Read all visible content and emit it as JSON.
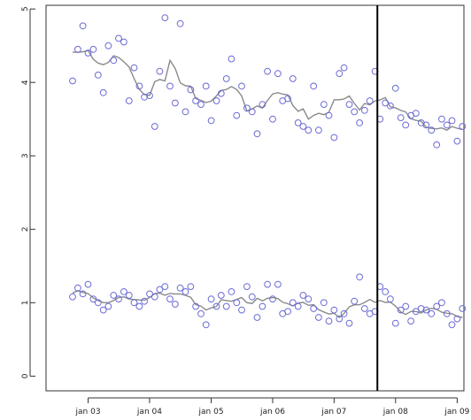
{
  "chart_data": {
    "type": "scatter",
    "title": "",
    "xlabel": "",
    "ylabel": "",
    "x_ticks": [
      "jan 03",
      "jan 04",
      "jan 05",
      "jan 06",
      "jan 07",
      "jan 08",
      "jan 09"
    ],
    "y_ticks": [
      "0",
      "1",
      "2",
      "3",
      "4",
      "5"
    ],
    "ylim": [
      -0.2,
      5.05
    ],
    "grid": false,
    "legend": "none",
    "vline_date": "2007-09-15",
    "colors": {
      "points": "#6b6bd6",
      "line": "#8a8a8a",
      "vline": "#000000",
      "axis": "#333333"
    },
    "series": [
      {
        "x": [
          "2002-10-01",
          "2002-11-01",
          "2002-12-01",
          "2003-01-01",
          "2003-02-01",
          "2003-03-01",
          "2003-04-01",
          "2003-05-01",
          "2003-06-01",
          "2003-07-01",
          "2003-08-01",
          "2003-09-01",
          "2003-10-01",
          "2003-11-01",
          "2003-12-01",
          "2004-01-01",
          "2004-02-01",
          "2004-03-01",
          "2004-04-01",
          "2004-05-01",
          "2004-06-01",
          "2004-07-01",
          "2004-08-01",
          "2004-09-01",
          "2004-10-01",
          "2004-11-01",
          "2004-12-01",
          "2005-01-01",
          "2005-02-01",
          "2005-03-01",
          "2005-04-01",
          "2005-05-01",
          "2005-06-01",
          "2005-07-01",
          "2005-08-01",
          "2005-09-01",
          "2005-10-01",
          "2005-11-01",
          "2005-12-01",
          "2006-01-01",
          "2006-02-01",
          "2006-03-01",
          "2006-04-01",
          "2006-05-01",
          "2006-06-01",
          "2006-07-01",
          "2006-08-01",
          "2006-09-01",
          "2006-10-01",
          "2006-11-01",
          "2006-12-01",
          "2007-01-01",
          "2007-02-01",
          "2007-03-01",
          "2007-04-01",
          "2007-05-01",
          "2007-06-01",
          "2007-07-01",
          "2007-08-01",
          "2007-09-01",
          "2007-10-01",
          "2007-11-01",
          "2007-12-01",
          "2008-01-01",
          "2008-02-01",
          "2008-03-01",
          "2008-04-01",
          "2008-05-01",
          "2008-06-01",
          "2008-07-01",
          "2008-08-01",
          "2008-09-01",
          "2008-10-01",
          "2008-11-01",
          "2008-12-01",
          "2009-01-01",
          "2009-02-01"
        ],
        "y": [
          4.02,
          4.45,
          4.77,
          4.4,
          4.45,
          4.1,
          3.86,
          4.5,
          4.3,
          4.6,
          4.55,
          3.75,
          4.2,
          3.95,
          3.8,
          3.82,
          3.4,
          4.15,
          4.88,
          3.95,
          3.72,
          4.8,
          3.6,
          3.9,
          3.75,
          3.7,
          3.95,
          3.48,
          3.75,
          3.85,
          4.05,
          4.32,
          3.55,
          3.95,
          3.65,
          3.6,
          3.3,
          3.7,
          4.15,
          3.5,
          4.12,
          3.75,
          3.78,
          4.05,
          3.45,
          3.4,
          3.35,
          3.95,
          3.35,
          3.7,
          3.55,
          3.25,
          4.12,
          4.2,
          3.7,
          3.6,
          3.45,
          3.62,
          3.75,
          4.15,
          3.5,
          3.72,
          3.68,
          3.92,
          3.52,
          3.42,
          3.55,
          3.58,
          3.45,
          3.42,
          3.35,
          3.15,
          3.5,
          3.42,
          3.48,
          3.2,
          3.4
        ]
      },
      {
        "x": [
          "2002-10-01",
          "2002-11-01",
          "2002-12-01",
          "2003-01-01",
          "2003-02-01",
          "2003-03-01",
          "2003-04-01",
          "2003-05-01",
          "2003-06-01",
          "2003-07-01",
          "2003-08-01",
          "2003-09-01",
          "2003-10-01",
          "2003-11-01",
          "2003-12-01",
          "2004-01-01",
          "2004-02-01",
          "2004-03-01",
          "2004-04-01",
          "2004-05-01",
          "2004-06-01",
          "2004-07-01",
          "2004-08-01",
          "2004-09-01",
          "2004-10-01",
          "2004-11-01",
          "2004-12-01",
          "2005-01-01",
          "2005-02-01",
          "2005-03-01",
          "2005-04-01",
          "2005-05-01",
          "2005-06-01",
          "2005-07-01",
          "2005-08-01",
          "2005-09-01",
          "2005-10-01",
          "2005-11-01",
          "2005-12-01",
          "2006-01-01",
          "2006-02-01",
          "2006-03-01",
          "2006-04-01",
          "2006-05-01",
          "2006-06-01",
          "2006-07-01",
          "2006-08-01",
          "2006-09-01",
          "2006-10-01",
          "2006-11-01",
          "2006-12-01",
          "2007-01-01",
          "2007-02-01",
          "2007-03-01",
          "2007-04-01",
          "2007-05-01",
          "2007-06-01",
          "2007-07-01",
          "2007-08-01",
          "2007-09-01",
          "2007-10-01",
          "2007-11-01",
          "2007-12-01",
          "2008-01-01",
          "2008-02-01",
          "2008-03-01",
          "2008-04-01",
          "2008-05-01",
          "2008-06-01",
          "2008-07-01",
          "2008-08-01",
          "2008-09-01",
          "2008-10-01",
          "2008-11-01",
          "2008-12-01",
          "2009-01-01",
          "2009-02-01"
        ],
        "y": [
          1.08,
          1.2,
          1.12,
          1.25,
          1.05,
          1.0,
          0.9,
          0.95,
          1.1,
          1.05,
          1.15,
          1.1,
          1.0,
          0.95,
          1.02,
          1.12,
          1.08,
          1.18,
          1.22,
          1.05,
          0.98,
          1.2,
          1.15,
          1.22,
          0.95,
          0.85,
          0.7,
          1.05,
          0.95,
          1.1,
          0.95,
          1.15,
          1.0,
          0.9,
          1.22,
          1.08,
          0.8,
          0.95,
          1.25,
          1.05,
          1.25,
          0.85,
          0.88,
          1.0,
          0.95,
          1.1,
          1.05,
          0.92,
          0.8,
          1.0,
          0.75,
          0.9,
          0.78,
          0.85,
          0.72,
          1.02,
          1.35,
          0.92,
          0.85,
          0.88,
          1.22,
          1.15,
          1.05,
          0.72,
          0.9,
          0.95,
          0.75,
          0.88,
          0.92,
          0.9,
          0.85,
          0.95,
          1.0,
          0.85,
          0.7,
          0.78,
          0.92
        ]
      }
    ]
  }
}
